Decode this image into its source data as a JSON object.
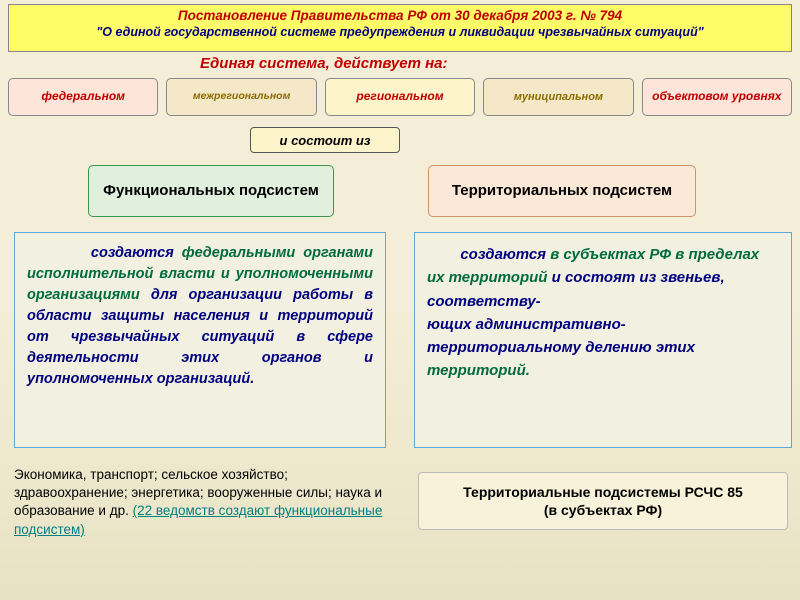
{
  "colors": {
    "header_bg": "#fffc6a",
    "red_text": "#c00000",
    "navy_text": "#000080",
    "green_text": "#006b3c",
    "teal_text": "#008080",
    "border_gray": "#888888",
    "border_cyan": "#5da8d8",
    "level_bg_red": "#fde5d9",
    "level_bg_beige": "#f4e8c8",
    "level_bg_yellow": "#fef4cc",
    "consists_bg": "#fef4cc",
    "functional_bg": "#e0f0dc",
    "territorial_bg": "#fbe8d6",
    "desc_bg": "#f2f0e0",
    "footer_right_bg": "#f8f2da",
    "page_bg": "#f4eed8"
  },
  "header": {
    "line1": "Постановление Правительства РФ от 30 декабря 2003 г. № 794",
    "line2": "\"О единой государственной системе предупреждения и ликвидации чрезвычайных ситуаций\""
  },
  "system_label": "Единая система, действует на:",
  "levels": [
    {
      "label": "федеральном",
      "bg": "#fde5d9",
      "color": "#c00000"
    },
    {
      "label": "межрегиональном",
      "bg": "#f4e8c8",
      "color": "#8a6d00",
      "fontsize": 10.5
    },
    {
      "label": "региональном",
      "bg": "#fef4cc",
      "color": "#c00000"
    },
    {
      "label": "муниципальном",
      "bg": "#f4e8c8",
      "color": "#8a6d00",
      "fontsize": 11
    },
    {
      "label": "объектовом уровнях",
      "bg": "#fde5d9",
      "color": "#c00000"
    }
  ],
  "consists": {
    "label": "и состоит из",
    "bg": "#fef4cc",
    "color": "#000000"
  },
  "functional": {
    "label": "Функциональных подсистем",
    "bg": "#e0f0dc",
    "border": "#3a994f",
    "color": "#000000"
  },
  "territorial": {
    "label": "Территориальных подсистем",
    "bg": "#fbe8d6",
    "border": "#c9966b",
    "color": "#000000"
  },
  "func_desc": {
    "bg": "#f2f0e0",
    "border": "#5da8d8",
    "indent": "        ",
    "parts": [
      {
        "text": "создаются ",
        "color": "#000080"
      },
      {
        "text": "федеральными органами исполнительной власти и уполномоченными организациями ",
        "color": "#006b3c"
      },
      {
        "text": "для организации работы в области защиты населения и территорий от чрезвычайных ситуаций в сфере деятельности этих органов и уполномоченных организаций.",
        "color": "#000080"
      }
    ]
  },
  "terr_desc": {
    "bg": "#f2f0e0",
    "border": "#5da8d8",
    "indent": "        ",
    "parts": [
      {
        "text": "создаются ",
        "color": "#000080"
      },
      {
        "text": "в субъектах РФ в пределах их территорий ",
        "color": "#006b3c"
      },
      {
        "text": "и состоят  из звеньев, соответству-",
        "color": "#000080"
      },
      {
        "text": "ющих  административно- территориальному делению этих",
        "color": "#000080"
      },
      {
        "text": "  территорий.",
        "color": "#006b3c"
      }
    ]
  },
  "footer_left": {
    "main": "Экономика, транспорт; сельское хозяйство; здравоохранение; энергетика; вооруженные силы; наука и образование и др. ",
    "link": "(22 ведомств создают функциональные подсистем)"
  },
  "footer_right": {
    "label": "Территориальные подсистемы РСЧС 85\n(в субъектах РФ)",
    "bg": "#f8f2da",
    "color": "#000000"
  }
}
